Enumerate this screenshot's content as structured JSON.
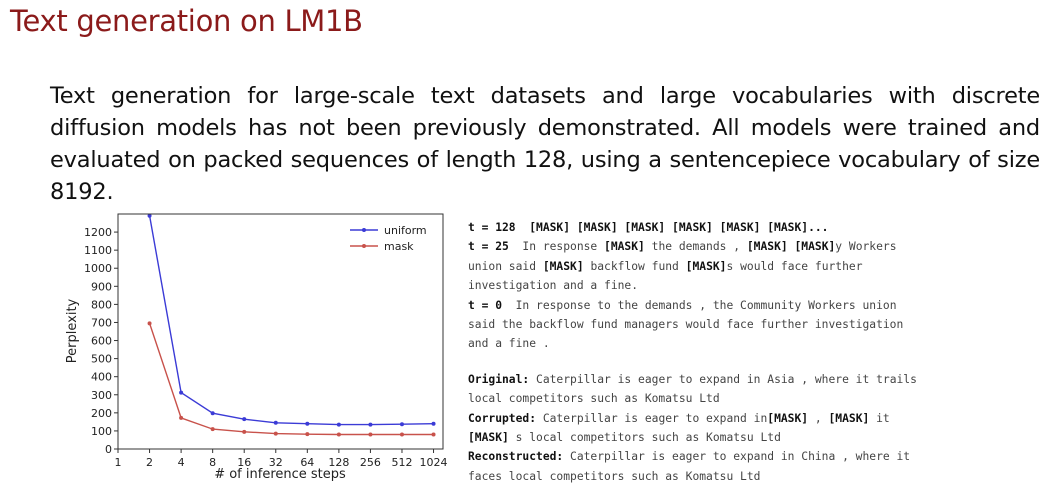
{
  "slide": {
    "title": "Text generation on LM1B",
    "paragraph": "Text generation for large-scale text datasets and large vocabularies with discrete diffusion models has not been previously demonstrated.  All models were trained and evaluated on packed sequences of length 128, using a sentencepiece vocabulary of size 8192."
  },
  "chart_data": {
    "type": "line",
    "x": [
      2,
      4,
      8,
      16,
      32,
      64,
      128,
      256,
      512,
      1024
    ],
    "x_tick_labels": [
      "1",
      "2",
      "4",
      "8",
      "16",
      "32",
      "64",
      "128",
      "256",
      "512",
      "1024"
    ],
    "xscale": "log2",
    "xlabel": "# of inference steps",
    "ylabel": "Perplexity",
    "ylim": [
      0,
      1300
    ],
    "y_ticks": [
      0,
      100,
      200,
      300,
      400,
      500,
      600,
      700,
      800,
      900,
      1000,
      1100,
      1200
    ],
    "grid": false,
    "legend": "top-right",
    "series": [
      {
        "name": "uniform",
        "color": "#3b3bd6",
        "values": [
          1290,
          312,
          198,
          165,
          145,
          140,
          135,
          135,
          137,
          140
        ]
      },
      {
        "name": "mask",
        "color": "#c8524b",
        "values": [
          695,
          172,
          110,
          95,
          85,
          82,
          80,
          80,
          80,
          80
        ]
      }
    ]
  },
  "samples": {
    "t128": {
      "label": "t = 128",
      "text": "  [MASK] [MASK] [MASK] [MASK] [MASK] [MASK]..."
    },
    "t25": {
      "label": "t = 25",
      "line1": [
        "  In response ",
        "[MASK]",
        " the demands , ",
        "[MASK] [MASK]",
        "y Workers"
      ],
      "line2": [
        "union said ",
        "[MASK]",
        " backflow fund ",
        "[MASK]",
        "s would face further"
      ],
      "line3": "investigation and a fine."
    },
    "t0": {
      "label": "t = 0",
      "line1": "  In response to the demands , the Community Workers union",
      "line2": "said the backflow fund managers would face further investigation",
      "line3": "and a fine ."
    },
    "original": {
      "label": "Original:",
      "line1": " Caterpillar is eager to expand in Asia , where it trails",
      "line2": "local competitors such as Komatsu Ltd"
    },
    "corrupted": {
      "label": "Corrupted:",
      "line1": [
        " Caterpillar is eager to expand in",
        "[MASK]",
        " , ",
        "[MASK]",
        " it"
      ],
      "line2": [
        "[MASK]",
        " s local competitors such as Komatsu Ltd"
      ]
    },
    "reconstructed": {
      "label": "Reconstructed:",
      "line1": " Caterpillar is eager to expand in China , where it",
      "line2": "faces local competitors such as Komatsu Ltd"
    }
  }
}
